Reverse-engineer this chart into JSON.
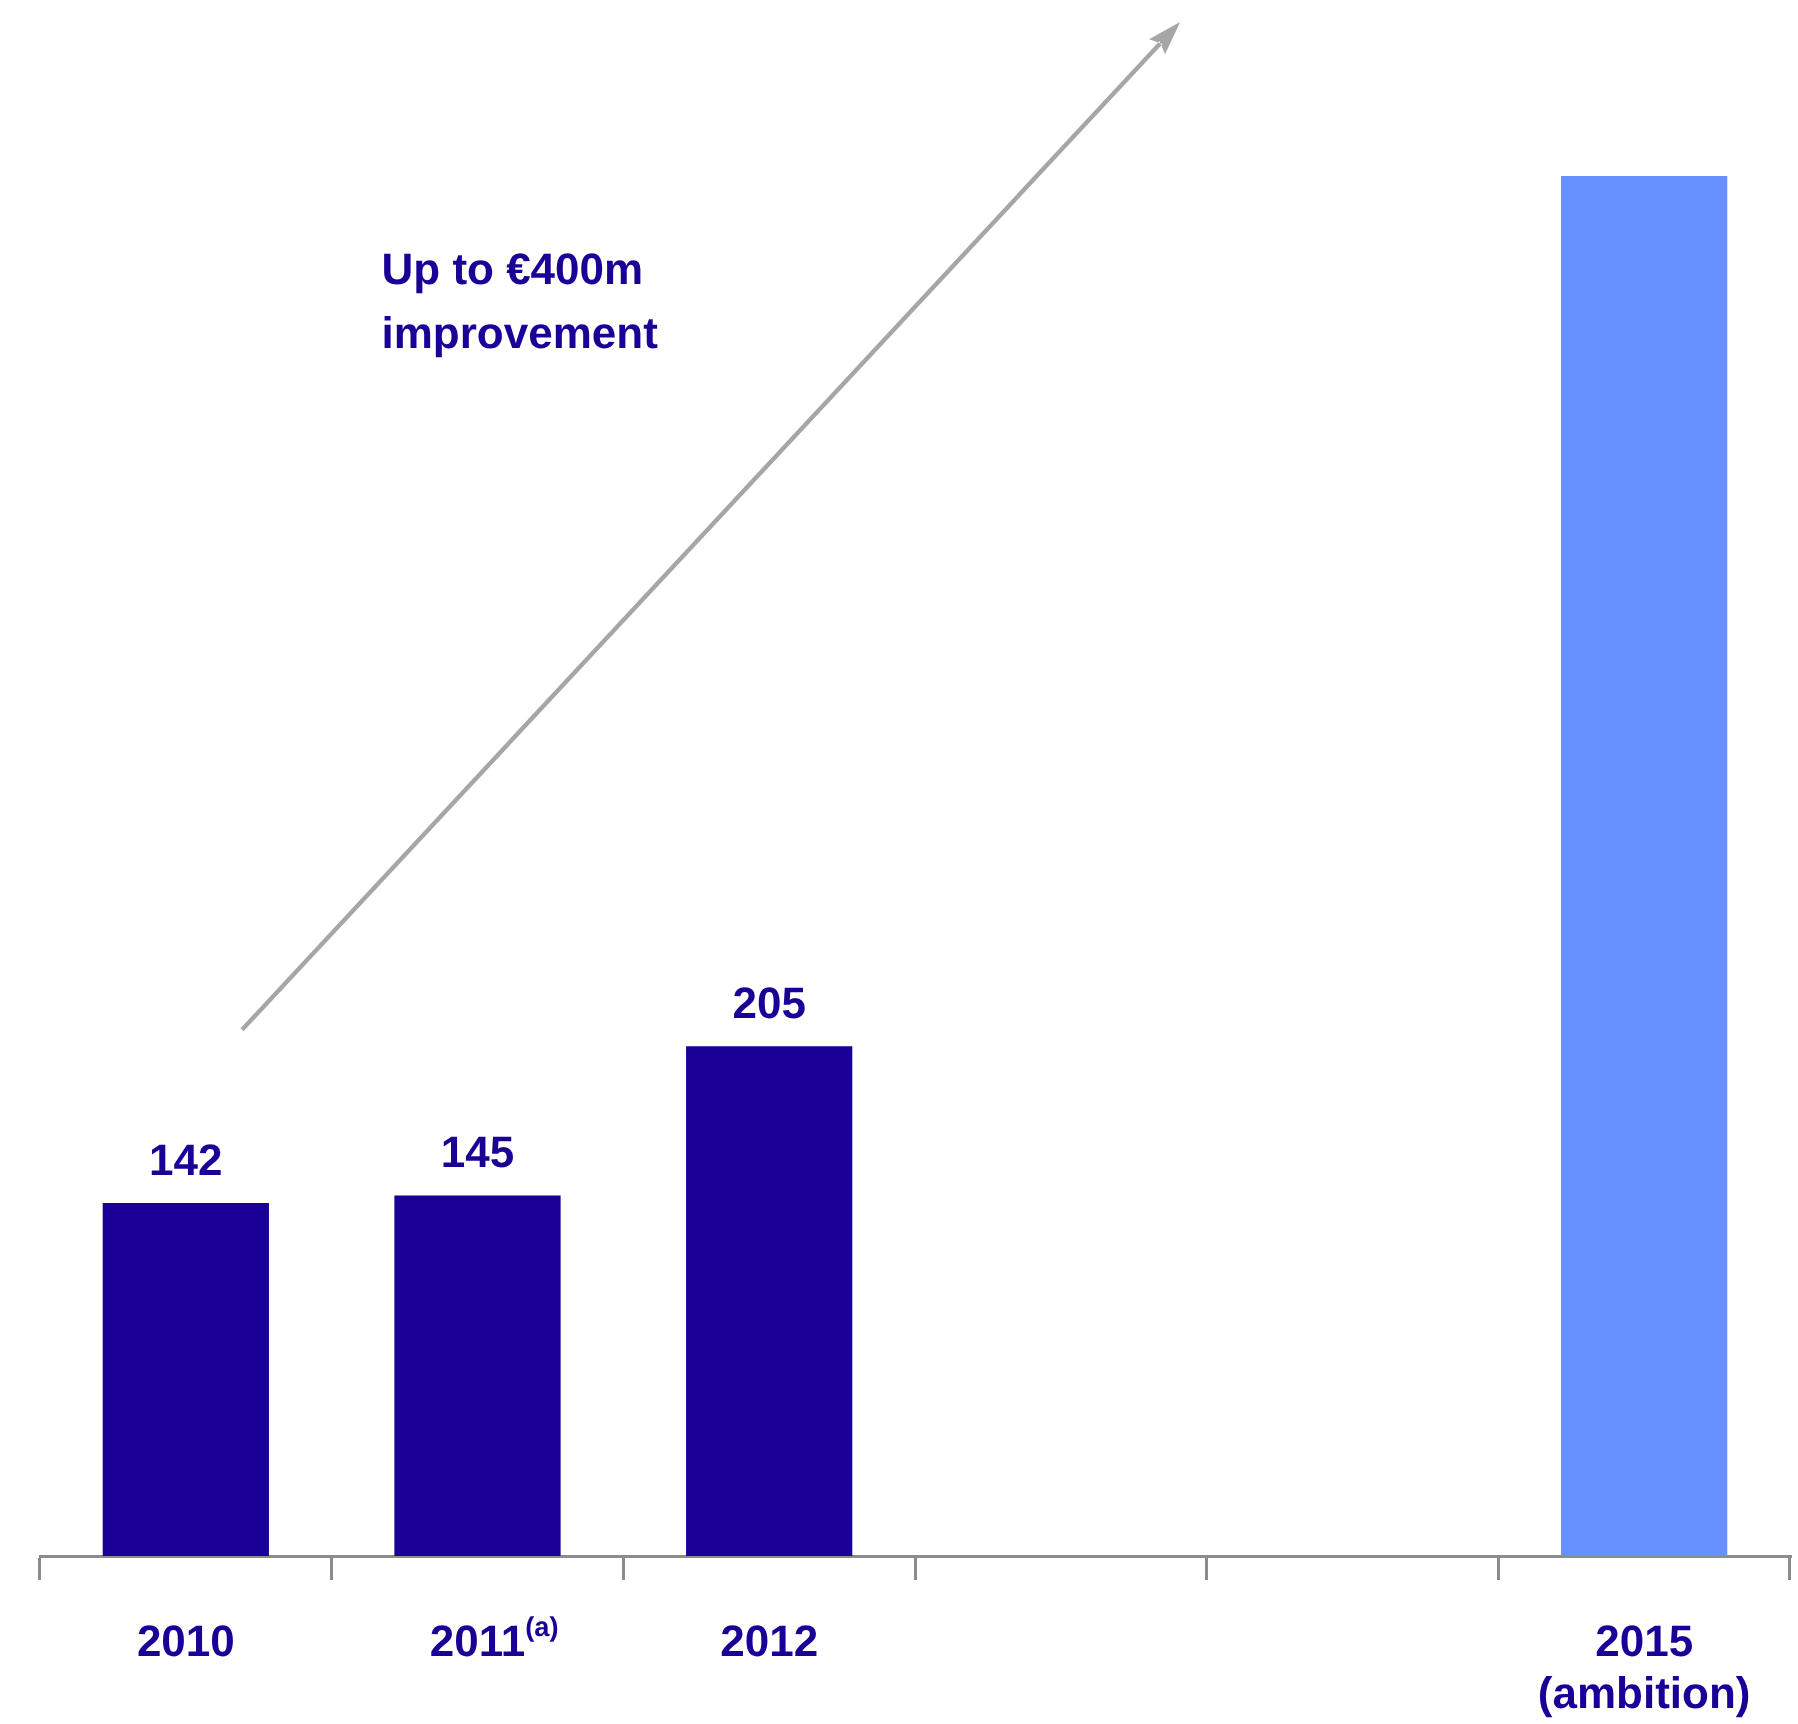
{
  "chart_data": {
    "type": "bar",
    "categories": [
      "2010",
      "2011$^{(a)}$",
      "2012",
      null,
      null,
      "2015\n(ambition)"
    ],
    "values": [
      142,
      145,
      205,
      null,
      null,
      555
    ],
    "colors": [
      "#1a0096",
      "#1a0096",
      "#1a0096",
      null,
      null,
      "#6690ff"
    ],
    "value_labels": [
      "142",
      "145",
      "205",
      null,
      null,
      null
    ],
    "annotations": [
      "Up to €400m improvement"
    ],
    "grid": false,
    "legend": false
  }
}
